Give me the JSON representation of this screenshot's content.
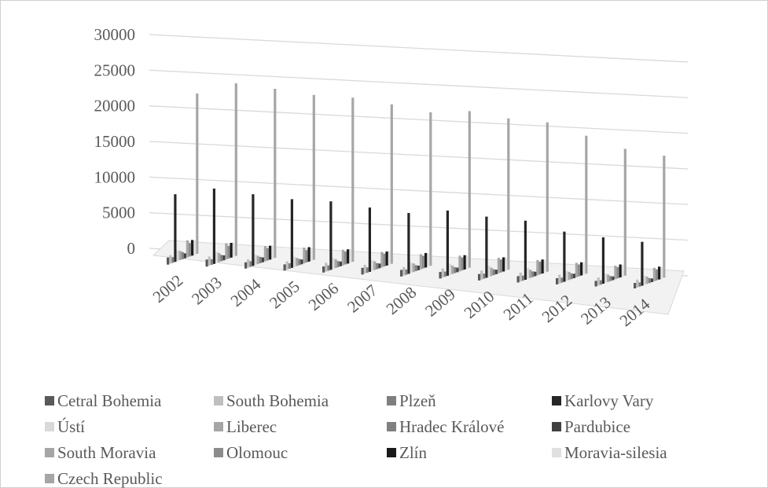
{
  "chart_data": {
    "type": "bar3d",
    "categories": [
      "2002",
      "2003",
      "2004",
      "2005",
      "2006",
      "2007",
      "2008",
      "2009",
      "2010",
      "2011",
      "2012",
      "2013",
      "2014"
    ],
    "ylim": [
      0,
      30000
    ],
    "yticks": [
      0,
      5000,
      10000,
      15000,
      20000,
      25000,
      30000
    ],
    "grid": true,
    "series": [
      {
        "name": "Cetral Bohemia",
        "color": "#595959",
        "values": [
          1000,
          1000,
          900,
          900,
          900,
          1000,
          1000,
          1000,
          1000,
          1000,
          1000,
          900,
          900
        ]
      },
      {
        "name": "South Bohemia",
        "color": "#bfbfbf",
        "values": [
          1200,
          1300,
          1200,
          1200,
          1300,
          1300,
          1300,
          1400,
          1400,
          1400,
          1400,
          1300,
          1300
        ]
      },
      {
        "name": "Plzeň",
        "color": "#7f7f7f",
        "values": [
          800,
          800,
          800,
          800,
          800,
          800,
          800,
          800,
          800,
          800,
          800,
          700,
          700
        ]
      },
      {
        "name": "Karlovy Vary",
        "color": "#262626",
        "values": [
          9500,
          10700,
          10300,
          10000,
          10100,
          9600,
          9200,
          10000,
          9500,
          9300,
          8000,
          7500,
          7200
        ]
      },
      {
        "name": "Ústí",
        "color": "#d9d9d9",
        "values": [
          1500,
          1600,
          1500,
          1500,
          1600,
          1600,
          1600,
          1700,
          1700,
          1700,
          1600,
          1500,
          1500
        ]
      },
      {
        "name": "Liberec",
        "color": "#a6a6a6",
        "values": [
          1300,
          1300,
          1200,
          1200,
          1300,
          1300,
          1300,
          1300,
          1300,
          1300,
          1300,
          1200,
          1200
        ]
      },
      {
        "name": "Hradec Králové",
        "color": "#808080",
        "values": [
          1000,
          900,
          900,
          900,
          900,
          900,
          900,
          900,
          900,
          900,
          900,
          800,
          800
        ]
      },
      {
        "name": "Pardubice",
        "color": "#404040",
        "values": [
          700,
          700,
          700,
          700,
          700,
          700,
          700,
          700,
          700,
          700,
          700,
          600,
          600
        ]
      },
      {
        "name": "South Moravia",
        "color": "#a6a6a6",
        "values": [
          2400,
          2300,
          2200,
          2300,
          2300,
          2300,
          2300,
          2400,
          2400,
          2400,
          2300,
          2200,
          2200
        ]
      },
      {
        "name": "Olomouc",
        "color": "#8c8c8c",
        "values": [
          1900,
          1800,
          1800,
          1800,
          1900,
          1900,
          1900,
          2000,
          2000,
          2000,
          1900,
          1800,
          1800
        ]
      },
      {
        "name": "Zlín",
        "color": "#1a1a1a",
        "values": [
          2200,
          2100,
          2000,
          2100,
          2100,
          2100,
          2200,
          2200,
          2200,
          2200,
          2100,
          2100,
          2100
        ]
      },
      {
        "name": "Moravia-silesia",
        "color": "#e0e0e0",
        "values": [
          2000,
          2000,
          1900,
          1900,
          2000,
          2000,
          2000,
          2000,
          2000,
          2000,
          1900,
          1900,
          1900
        ]
      },
      {
        "name": "Czech Republic",
        "color": "#a6a6a6",
        "values": [
          22500,
          24500,
          24300,
          24000,
          24200,
          23800,
          23200,
          24000,
          23500,
          23500,
          22000,
          20500,
          20000
        ]
      }
    ]
  }
}
